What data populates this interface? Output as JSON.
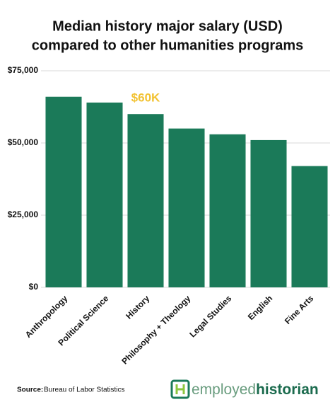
{
  "chart_data": {
    "type": "bar",
    "title": [
      "Median history major salary (USD)",
      "compared to other humanities programs"
    ],
    "categories": [
      "Anthropology",
      "Political Science",
      "History",
      "Philosophy + Theology",
      "Legal Studies",
      "English",
      "Fine Arts"
    ],
    "values": [
      66000,
      64000,
      60000,
      55000,
      53000,
      51000,
      42000
    ],
    "value_labels": [
      null,
      null,
      "$60K",
      null,
      null,
      null,
      null
    ],
    "color": "#1b7a59",
    "value_label_color": "#f2c232",
    "ylim": [
      0,
      75000
    ],
    "yticks": [
      {
        "value": 0,
        "label": "$0"
      },
      {
        "value": 25000,
        "label": "$25,000"
      },
      {
        "value": 50000,
        "label": "$50,000"
      },
      {
        "value": 75000,
        "label": "$75,000"
      }
    ],
    "grid": true,
    "source_label": "Source:",
    "source": "Bureau of Labor Statistics",
    "brand": [
      "employed",
      "historian"
    ]
  }
}
